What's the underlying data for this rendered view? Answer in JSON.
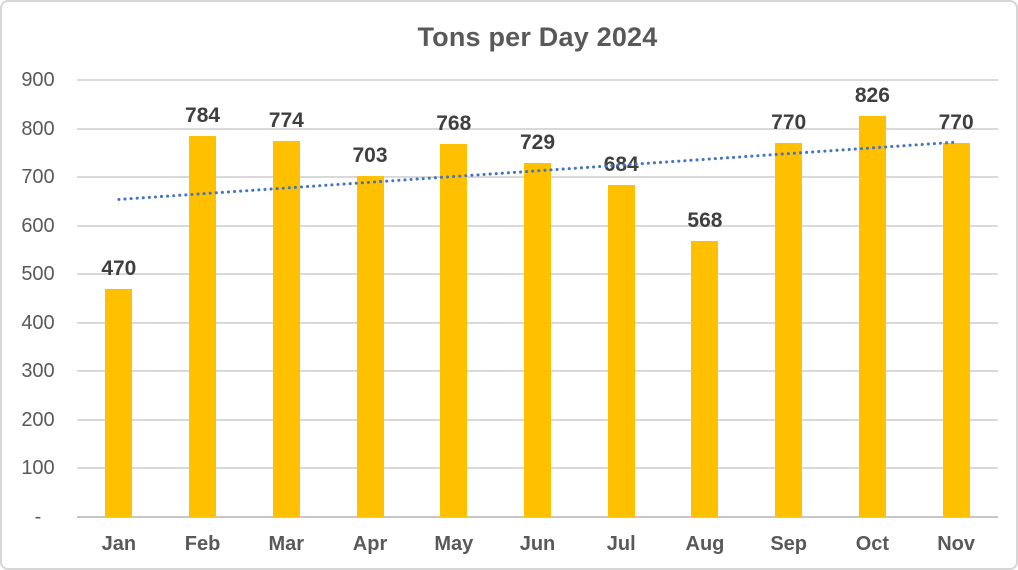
{
  "window": {
    "background_color": "#FFFFFF",
    "border_color": "#D6D6D6"
  },
  "chart_data": {
    "type": "bar",
    "title": "Tons per Day 2024",
    "categories": [
      "Jan",
      "Feb",
      "Mar",
      "Apr",
      "May",
      "Jun",
      "Jul",
      "Aug",
      "Sep",
      "Oct",
      "Nov"
    ],
    "values": [
      470,
      784,
      774,
      703,
      768,
      729,
      684,
      568,
      770,
      826,
      770
    ],
    "data_labels": [
      "470",
      "784",
      "774",
      "703",
      "768",
      "729",
      "684",
      "568",
      "770",
      "826",
      "770"
    ],
    "xlabel": "",
    "ylabel": "",
    "ylim": [
      0,
      900
    ],
    "y_tick_step": 100,
    "y_tick_labels": [
      "-",
      "100",
      "200",
      "300",
      "400",
      "500",
      "600",
      "700",
      "800",
      "900"
    ],
    "grid": true,
    "legend_position": "none",
    "bar_color": "#FFC000",
    "gridline_color": "#D9D9D9",
    "baseline_color": "#C6C6C6",
    "title_color": "#595959",
    "axis_label_color": "#595959",
    "data_label_color": "#3F3F3F",
    "trendline": {
      "type": "linear",
      "style": "dotted",
      "color": "#4472C4",
      "start_value": 654,
      "end_value": 772
    }
  }
}
